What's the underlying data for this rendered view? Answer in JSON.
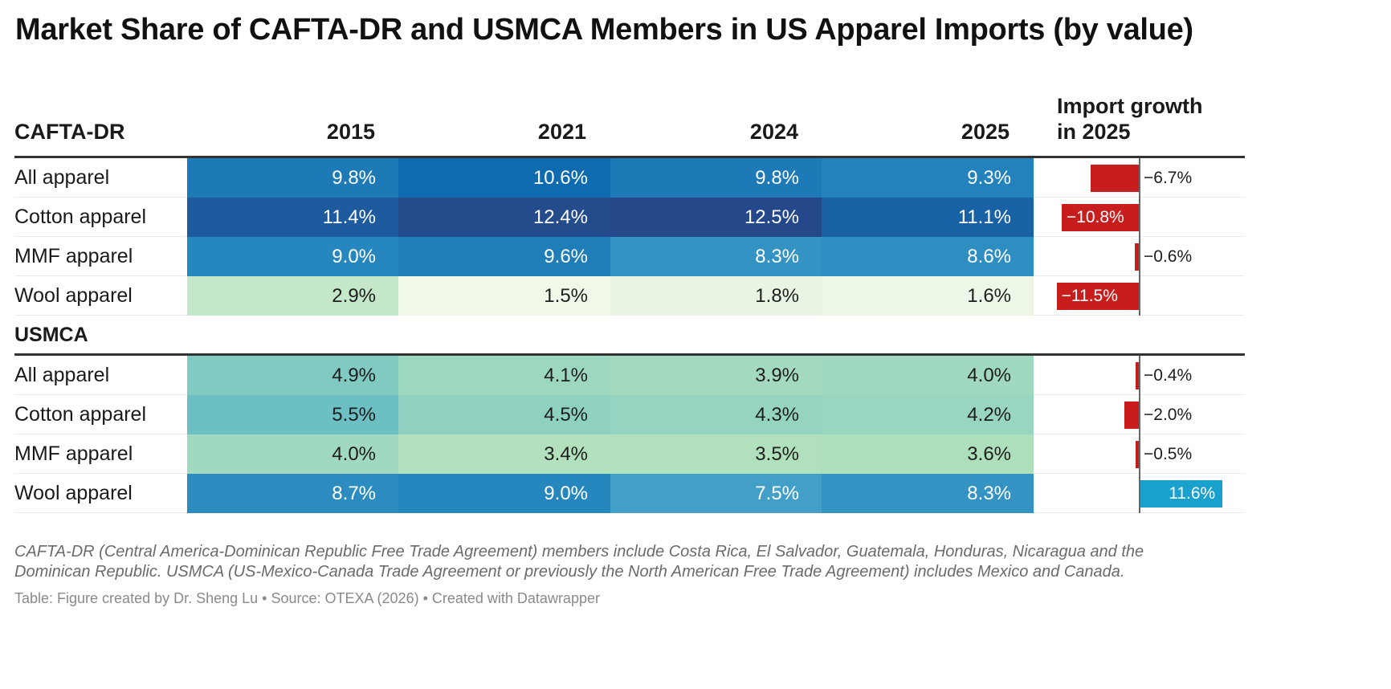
{
  "title": "Market Share of CAFTA-DR and USMCA Members in US Apparel Imports (by value)",
  "chart_data": {
    "type": "table",
    "title": "Market Share of CAFTA-DR and USMCA Members in US Apparel Imports (by value)",
    "columns": [
      "2015",
      "2021",
      "2024",
      "2025"
    ],
    "growth_column": "Import growth in 2025",
    "unit": "%",
    "groups": [
      {
        "name": "CAFTA-DR",
        "rows": [
          {
            "label": "All apparel",
            "values": [
              9.8,
              10.6,
              9.8,
              9.3
            ],
            "growth": -6.7
          },
          {
            "label": "Cotton apparel",
            "values": [
              11.4,
              12.4,
              12.5,
              11.1
            ],
            "growth": -10.8
          },
          {
            "label": "MMF apparel",
            "values": [
              9.0,
              9.6,
              8.3,
              8.6
            ],
            "growth": -0.6
          },
          {
            "label": "Wool apparel",
            "values": [
              2.9,
              1.5,
              1.8,
              1.6
            ],
            "growth": -11.5
          }
        ]
      },
      {
        "name": "USMCA",
        "rows": [
          {
            "label": "All apparel",
            "values": [
              4.9,
              4.1,
              3.9,
              4.0
            ],
            "growth": -0.4
          },
          {
            "label": "Cotton apparel",
            "values": [
              5.5,
              4.5,
              4.3,
              4.2
            ],
            "growth": -2.0
          },
          {
            "label": "MMF apparel",
            "values": [
              4.0,
              3.4,
              3.5,
              3.6
            ],
            "growth": -0.5
          },
          {
            "label": "Wool apparel",
            "values": [
              8.7,
              9.0,
              7.5,
              8.3
            ],
            "growth": 11.6
          }
        ]
      }
    ],
    "color_scale": {
      "type": "sequential",
      "low": "#f2f9ec",
      "mid": "#9ed9c0",
      "high": "#24488a"
    },
    "bar_colors": {
      "negative": "#c71e1d",
      "positive": "#18a1cd"
    }
  },
  "header": {
    "group1": "CAFTA-DR",
    "years": [
      "2015",
      "2021",
      "2024",
      "2025"
    ],
    "growth_line1": "Import growth",
    "growth_line2": "in 2025"
  },
  "notes": "CAFTA-DR (Central America-Dominican Republic Free Trade Agreement) members include Costa Rica, El Salvador, Guatemala, Honduras, Nicaragua and the Dominican Republic. USMCA (US-Mexico-Canada Trade Agreement or previously the North American Free Trade Agreement) includes Mexico and Canada.",
  "byline": "Table: Figure created by Dr. Sheng Lu • Source: OTEXA (2026) • Created with Datawrapper"
}
